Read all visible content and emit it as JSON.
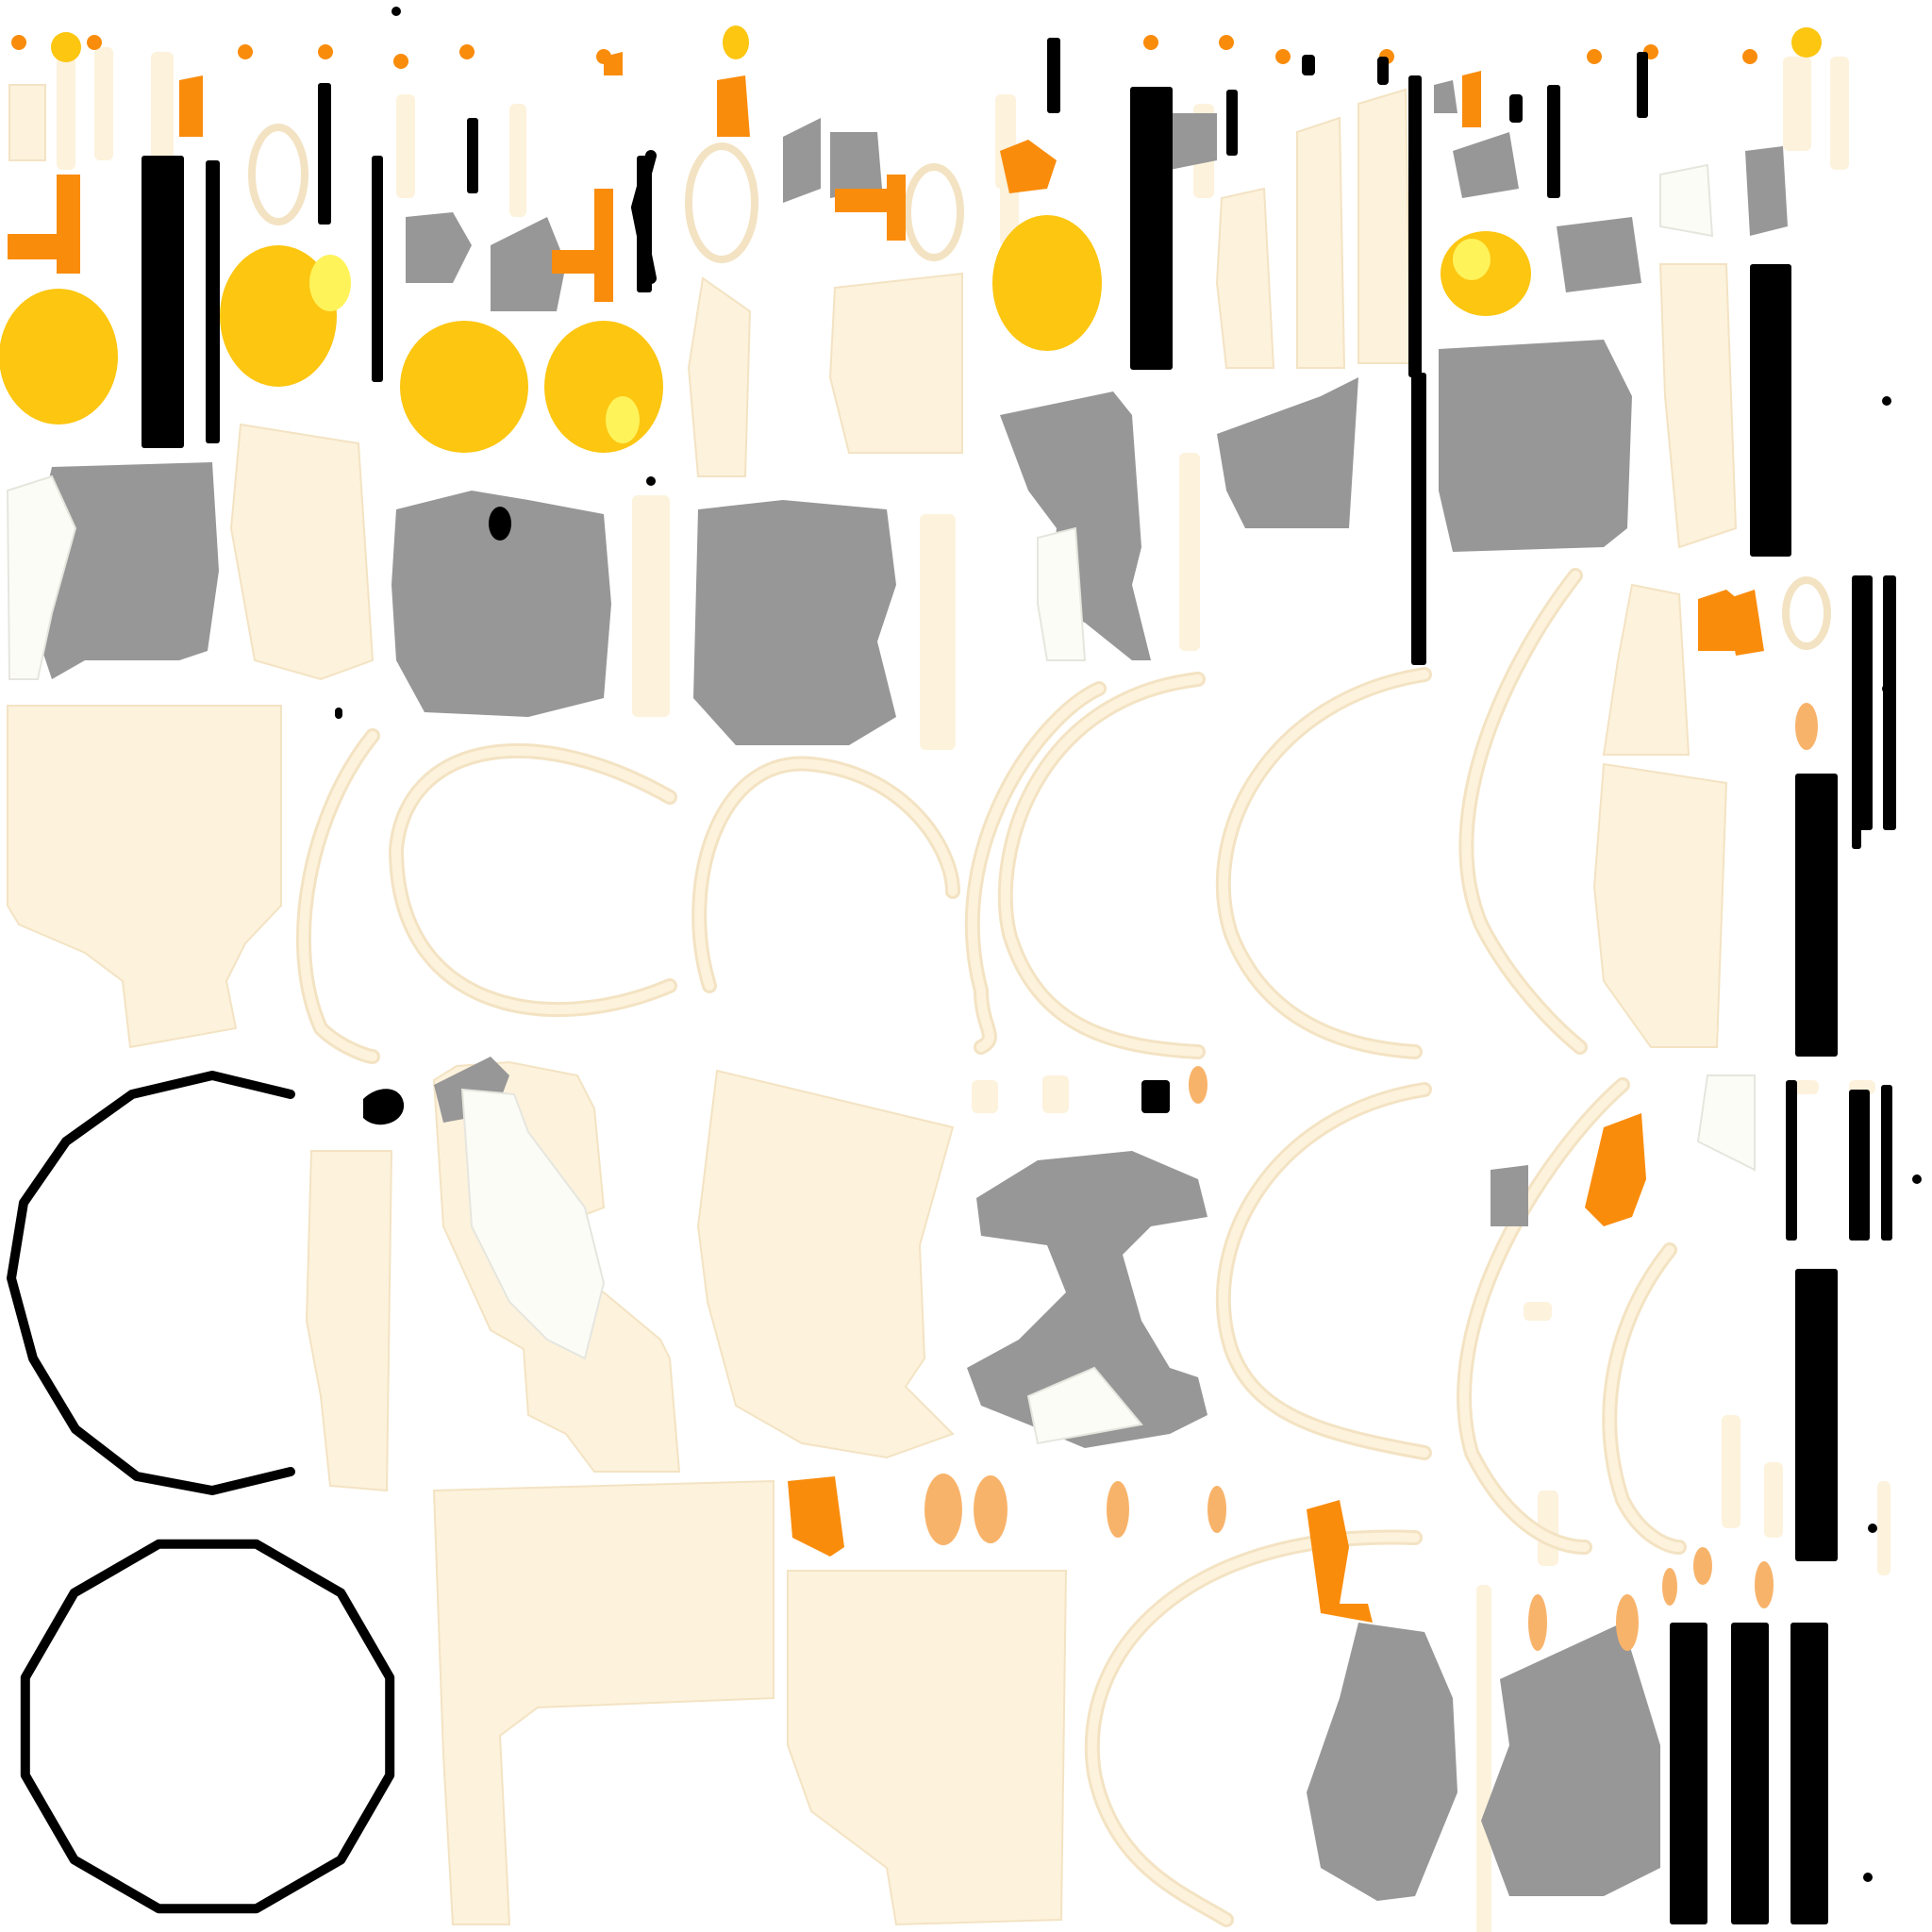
{
  "texture_atlas": {
    "background": "#ffffff",
    "palette": {
      "cream": "#fdf2dc",
      "cream_outline": "#f3e3c3",
      "gray": "#979797",
      "black": "#000000",
      "yellow": "#fcc611",
      "yellow_light": "#fff35a",
      "orange": "#fa8c0c",
      "orange_light": "#f8b36a",
      "white_off": "#fcfcf7"
    },
    "regions": [
      "cream-panels",
      "gray-panels",
      "black-strips",
      "yellow-blobs",
      "orange-pieces",
      "cream-arcs",
      "black-polygon-rings"
    ]
  }
}
